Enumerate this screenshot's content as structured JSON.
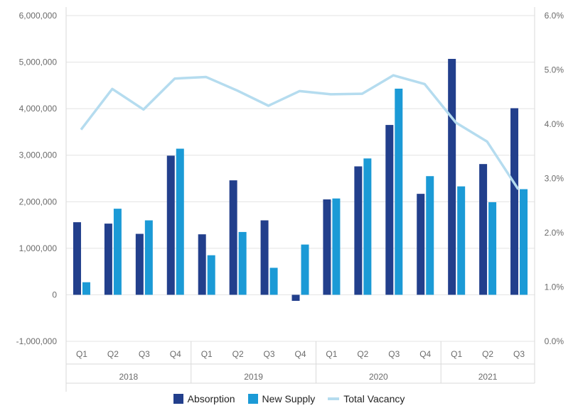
{
  "chart_data": {
    "type": "bar",
    "categories": [
      "Q1",
      "Q2",
      "Q3",
      "Q4",
      "Q1",
      "Q2",
      "Q3",
      "Q4",
      "Q1",
      "Q2",
      "Q3",
      "Q4",
      "Q1",
      "Q2",
      "Q3"
    ],
    "years": [
      {
        "label": "2018",
        "span": 4
      },
      {
        "label": "2019",
        "span": 4
      },
      {
        "label": "2020",
        "span": 4
      },
      {
        "label": "2021",
        "span": 3
      }
    ],
    "series": [
      {
        "name": "Absorption",
        "kind": "bar",
        "axis": "left",
        "color": "#223f8c",
        "values": [
          1560000,
          1530000,
          1310000,
          2990000,
          1300000,
          2460000,
          1600000,
          -130000,
          2050000,
          2760000,
          3650000,
          2170000,
          5070000,
          2810000,
          4010000
        ]
      },
      {
        "name": "New Supply",
        "kind": "bar",
        "axis": "left",
        "color": "#1b9ad6",
        "values": [
          270000,
          1850000,
          1600000,
          3140000,
          850000,
          1350000,
          580000,
          1080000,
          2070000,
          2930000,
          4430000,
          2550000,
          2330000,
          1990000,
          2270000
        ]
      },
      {
        "name": "Total Vacancy",
        "kind": "line",
        "axis": "right",
        "color": "#b5dcef",
        "values": [
          3.9,
          4.65,
          4.27,
          4.84,
          4.87,
          4.62,
          4.34,
          4.61,
          4.55,
          4.56,
          4.9,
          4.74,
          4.03,
          3.68,
          2.8
        ]
      }
    ],
    "y_left": {
      "min": -1000000,
      "max": 6000000,
      "step": 1000000,
      "tick_labels": [
        "-1,000,000",
        "0",
        "1,000,000",
        "2,000,000",
        "3,000,000",
        "4,000,000",
        "5,000,000",
        "6,000,000"
      ]
    },
    "y_right": {
      "min": 0,
      "max": 6,
      "step": 1,
      "tick_labels": [
        "0.0%",
        "1.0%",
        "2.0%",
        "3.0%",
        "4.0%",
        "5.0%",
        "6.0%"
      ]
    },
    "grid": true,
    "legend": {
      "position": "bottom"
    }
  }
}
